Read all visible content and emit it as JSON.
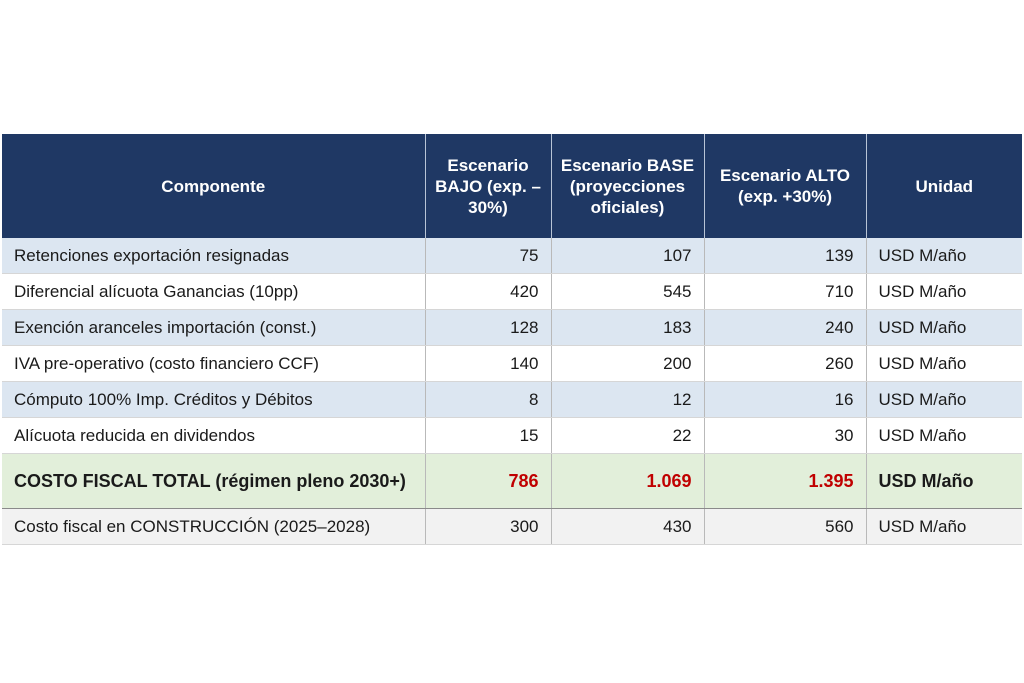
{
  "table": {
    "headers": [
      "Componente",
      "Escenario BAJO (exp. – 30%)",
      "Escenario BASE (proyecciones oficiales)",
      "Escenario ALTO (exp. +30%)",
      "Unidad"
    ],
    "rows": [
      {
        "component": "Retenciones exportación resignadas",
        "bajo": "75",
        "base": "107",
        "alto": "139",
        "unit": "USD M/año"
      },
      {
        "component": "Diferencial alícuota Ganancias (10pp)",
        "bajo": "420",
        "base": "545",
        "alto": "710",
        "unit": "USD M/año"
      },
      {
        "component": "Exención aranceles importación (const.)",
        "bajo": "128",
        "base": "183",
        "alto": "240",
        "unit": "USD M/año"
      },
      {
        "component": "IVA pre-operativo (costo financiero CCF)",
        "bajo": "140",
        "base": "200",
        "alto": "260",
        "unit": "USD M/año"
      },
      {
        "component": "Cómputo 100% Imp. Créditos y Débitos",
        "bajo": "8",
        "base": "12",
        "alto": "16",
        "unit": "USD M/año"
      },
      {
        "component": "Alícuota reducida en dividendos",
        "bajo": "15",
        "base": "22",
        "alto": "30",
        "unit": "USD M/año"
      },
      {
        "component": "COSTO FISCAL TOTAL (régimen pleno 2030+)",
        "bajo": "786",
        "base": "1.069",
        "alto": "1.395",
        "unit": "USD M/año"
      },
      {
        "component": "Costo fiscal en CONSTRUCCIÓN (2025–2028)",
        "bajo": "300",
        "base": "430",
        "alto": "560",
        "unit": "USD M/año"
      }
    ]
  },
  "colors": {
    "header_bg": "#1f3864",
    "row_blue": "#dce6f1",
    "total_bg": "#e2efda",
    "total_value": "#c00000"
  }
}
